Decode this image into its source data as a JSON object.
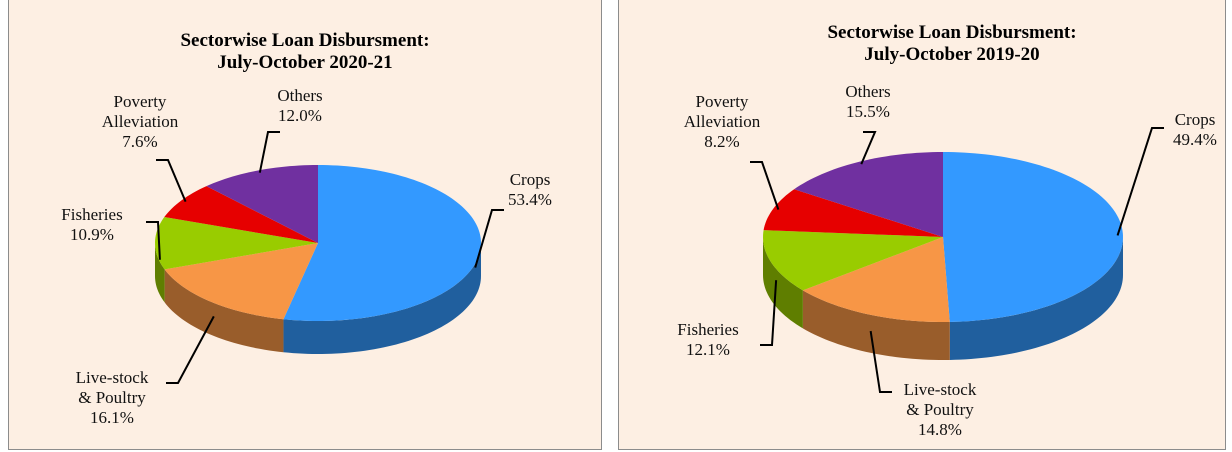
{
  "chart_data": [
    {
      "type": "pie3d",
      "title": "Sectorwise Loan Disbursment:\nJuly-October 2020-21",
      "categories": [
        "Crops",
        "Live-stock\n& Poultry",
        "Fisheries",
        "Poverty\nAlleviation",
        "Others"
      ],
      "values": [
        53.4,
        16.1,
        10.9,
        7.6,
        12.0
      ],
      "value_labels": [
        "53.4%",
        "16.1%",
        "10.9%",
        "7.6%",
        "12.0%"
      ],
      "colors": [
        "#3399ff",
        "#f79646",
        "#99cc00",
        "#e60000",
        "#7030a0"
      ]
    },
    {
      "type": "pie3d",
      "title": "Sectorwise Loan Disbursment:\nJuly-October 2019-20",
      "categories": [
        "Crops",
        "Live-stock\n& Poultry",
        "Fisheries",
        "Poverty\nAlleviation",
        "Others"
      ],
      "values": [
        49.4,
        14.8,
        12.1,
        8.2,
        15.5
      ],
      "value_labels": [
        "49.4%",
        "14.8%",
        "12.1%",
        "8.2%",
        "15.5%"
      ],
      "colors": [
        "#3399ff",
        "#f79646",
        "#99cc00",
        "#e60000",
        "#7030a0"
      ]
    }
  ]
}
